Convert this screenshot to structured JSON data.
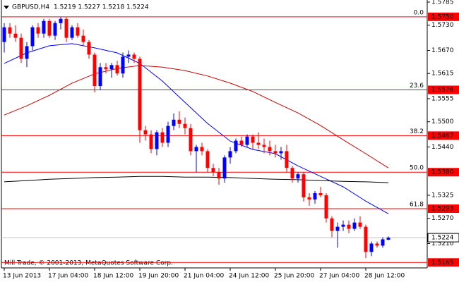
{
  "chart_data": {
    "type": "candlestick",
    "symbol": "GBPUSD,H4",
    "quote": "1.5219 1.5227 1.5218 1.5224",
    "footer": "Mill Trade, © 2001-2013, MetaQuotes Software Corp.",
    "up_color": "#0000ff",
    "down_color": "#ff0000",
    "categories": [
      "13 Jun 2013",
      null,
      null,
      null,
      null,
      null,
      null,
      null,
      "17 Jun 04:00",
      null,
      null,
      null,
      null,
      null,
      null,
      null,
      "18 Jun 12:00",
      null,
      null,
      null,
      null,
      null,
      null,
      null,
      "19 Jun 20:00",
      null,
      null,
      null,
      null,
      null,
      null,
      null,
      "21 Jun 04:00",
      null,
      null,
      null,
      null,
      null,
      null,
      null,
      "24 Jun 12:00",
      null,
      null,
      null,
      null,
      null,
      null,
      null,
      "25 Jun 20:00",
      null,
      null,
      null,
      null,
      null,
      null,
      null,
      "27 Jun 04:00",
      null,
      null,
      null,
      null,
      null,
      null,
      null,
      "28 Jun 12:00",
      null,
      null,
      null,
      null
    ],
    "ohlc": [
      [
        1.569,
        1.5735,
        1.5665,
        1.5725
      ],
      [
        1.5725,
        1.5735,
        1.57,
        1.571
      ],
      [
        1.571,
        1.573,
        1.569,
        1.57
      ],
      [
        1.57,
        1.571,
        1.564,
        1.565
      ],
      [
        1.565,
        1.569,
        1.563,
        1.568
      ],
      [
        1.568,
        1.573,
        1.567,
        1.5725
      ],
      [
        1.5725,
        1.5735,
        1.57,
        1.571
      ],
      [
        1.571,
        1.5745,
        1.57,
        1.574
      ],
      [
        1.574,
        1.5745,
        1.57,
        1.5705
      ],
      [
        1.5705,
        1.574,
        1.5695,
        1.5735
      ],
      [
        1.5735,
        1.575,
        1.572,
        1.5745
      ],
      [
        1.5745,
        1.575,
        1.569,
        1.57
      ],
      [
        1.57,
        1.573,
        1.5695,
        1.5725
      ],
      [
        1.5725,
        1.5735,
        1.57,
        1.5705
      ],
      [
        1.5705,
        1.572,
        1.568,
        1.569
      ],
      [
        1.569,
        1.5695,
        1.565,
        1.566
      ],
      [
        1.566,
        1.5665,
        1.557,
        1.5585
      ],
      [
        1.5585,
        1.564,
        1.5575,
        1.563
      ],
      [
        1.563,
        1.564,
        1.5615,
        1.5625
      ],
      [
        1.5625,
        1.564,
        1.5605,
        1.5635
      ],
      [
        1.5635,
        1.5645,
        1.561,
        1.5615
      ],
      [
        1.5615,
        1.5665,
        1.5605,
        1.5655
      ],
      [
        1.5655,
        1.567,
        1.564,
        1.566
      ],
      [
        1.566,
        1.5665,
        1.564,
        1.565
      ],
      [
        1.565,
        1.5655,
        1.545,
        1.548
      ],
      [
        1.548,
        1.549,
        1.5455,
        1.547
      ],
      [
        1.547,
        1.548,
        1.5425,
        1.5435
      ],
      [
        1.5435,
        1.548,
        1.542,
        1.5475
      ],
      [
        1.5475,
        1.5485,
        1.544,
        1.545
      ],
      [
        1.545,
        1.55,
        1.544,
        1.549
      ],
      [
        1.549,
        1.552,
        1.548,
        1.5505
      ],
      [
        1.5505,
        1.5525,
        1.5485,
        1.5495
      ],
      [
        1.5495,
        1.551,
        1.547,
        1.5485
      ],
      [
        1.5485,
        1.5495,
        1.542,
        1.543
      ],
      [
        1.543,
        1.5445,
        1.538,
        1.544
      ],
      [
        1.544,
        1.545,
        1.542,
        1.543
      ],
      [
        1.543,
        1.5435,
        1.538,
        1.539
      ],
      [
        1.539,
        1.54,
        1.537,
        1.538
      ],
      [
        1.538,
        1.539,
        1.535,
        1.5365
      ],
      [
        1.5365,
        1.542,
        1.5355,
        1.5415
      ],
      [
        1.5415,
        1.544,
        1.54,
        1.543
      ],
      [
        1.543,
        1.546,
        1.5425,
        1.5455
      ],
      [
        1.5455,
        1.5465,
        1.544,
        1.5445
      ],
      [
        1.5445,
        1.547,
        1.544,
        1.5465
      ],
      [
        1.5465,
        1.547,
        1.5435,
        1.545
      ],
      [
        1.545,
        1.5475,
        1.5435,
        1.5445
      ],
      [
        1.5445,
        1.546,
        1.5425,
        1.544
      ],
      [
        1.544,
        1.5455,
        1.542,
        1.543
      ],
      [
        1.543,
        1.5445,
        1.5415,
        1.5425
      ],
      [
        1.5425,
        1.544,
        1.541,
        1.543
      ],
      [
        1.543,
        1.5445,
        1.538,
        1.539
      ],
      [
        1.539,
        1.5395,
        1.5355,
        1.5365
      ],
      [
        1.5365,
        1.538,
        1.5355,
        1.5375
      ],
      [
        1.5375,
        1.538,
        1.531,
        1.532
      ],
      [
        1.532,
        1.533,
        1.53,
        1.5315
      ],
      [
        1.5315,
        1.5335,
        1.5305,
        1.533
      ],
      [
        1.533,
        1.5345,
        1.532,
        1.5325
      ],
      [
        1.5325,
        1.533,
        1.526,
        1.527
      ],
      [
        1.527,
        1.5275,
        1.5225,
        1.524
      ],
      [
        1.524,
        1.526,
        1.52,
        1.525
      ],
      [
        1.525,
        1.5265,
        1.524,
        1.5255
      ],
      [
        1.5255,
        1.5265,
        1.5235,
        1.5245
      ],
      [
        1.5245,
        1.527,
        1.524,
        1.526
      ],
      [
        1.526,
        1.5275,
        1.5245,
        1.525
      ],
      [
        1.525,
        1.5255,
        1.5175,
        1.519
      ],
      [
        1.519,
        1.5215,
        1.518,
        1.521
      ],
      [
        1.521,
        1.5215,
        1.52,
        1.5205
      ],
      [
        1.5205,
        1.5225,
        1.52,
        1.522
      ],
      [
        1.5219,
        1.5227,
        1.5218,
        1.5224
      ]
    ],
    "ma": [
      {
        "color": "#0000ff",
        "x": [
          0,
          4,
          8,
          12,
          16,
          20,
          24,
          28,
          32,
          36,
          40,
          44,
          48,
          52,
          56,
          60,
          64,
          68
        ],
        "values": [
          1.5639,
          1.5664,
          1.5681,
          1.5686,
          1.5676,
          1.5664,
          1.5639,
          1.5597,
          1.5546,
          1.5496,
          1.5454,
          1.5434,
          1.5424,
          1.5395,
          1.537,
          1.5345,
          1.5311,
          1.5281
        ]
      },
      {
        "color": "#cc0000",
        "x": [
          0,
          4,
          8,
          12,
          16,
          20,
          24,
          28,
          32,
          36,
          40,
          44,
          48,
          52,
          56,
          60,
          64,
          68
        ],
        "values": [
          1.5516,
          1.5538,
          1.5563,
          1.5592,
          1.5614,
          1.5627,
          1.5634,
          1.563,
          1.5622,
          1.5609,
          1.5592,
          1.5572,
          1.5546,
          1.5521,
          1.5491,
          1.5457,
          1.5424,
          1.539
        ]
      },
      {
        "color": "#000000",
        "x": [
          0,
          4,
          8,
          12,
          16,
          20,
          24,
          28,
          32,
          36,
          40,
          44,
          48,
          52,
          56,
          60,
          64,
          68
        ],
        "values": [
          1.5357,
          1.536,
          1.5363,
          1.5365,
          1.5367,
          1.5368,
          1.537,
          1.537,
          1.5368,
          1.5368,
          1.5367,
          1.5365,
          1.5363,
          1.5362,
          1.536,
          1.5358,
          1.5357,
          1.5355
        ]
      }
    ],
    "levels": [
      {
        "ratio": "0.0",
        "price": {
          "value": 1.575,
          "label": "1.5750"
        }
      },
      {
        "ratio": "23.6",
        "price": 1.5576
      },
      {
        "ratio": "38.2",
        "price": 1.5467
      },
      {
        "ratio": "50.0",
        "price": {
          "value": 1.538,
          "label": "1.5380"
        }
      },
      {
        "ratio": "61.8",
        "price": 1.5293
      }
    ],
    "low_line": 1.5165,
    "level_color": "#ff0000",
    "current_price": 1.5224,
    "ylim": [
      1.5152,
      1.579
    ],
    "yticks": [
      1.5785,
      {
        "value": 1.573,
        "label": "1.5730"
      },
      {
        "value": 1.567,
        "label": "1.5670"
      },
      1.5615,
      1.5555,
      {
        "value": 1.55,
        "label": "1.5500"
      },
      {
        "value": 1.544,
        "label": "1.5440"
      },
      1.5325,
      {
        "value": 1.527,
        "label": "1.5270"
      },
      {
        "value": 1.521,
        "label": "1.5210"
      }
    ]
  }
}
